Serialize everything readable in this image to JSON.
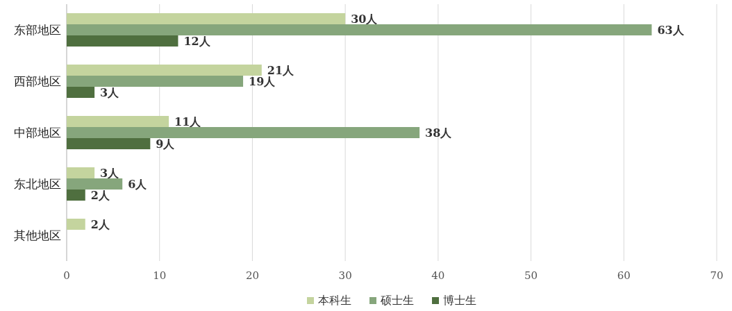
{
  "chart_data": {
    "type": "bar",
    "orientation": "horizontal",
    "categories": [
      "东部地区",
      "西部地区",
      "中部地区",
      "东北地区",
      "其他地区"
    ],
    "series": [
      {
        "name": "本科生",
        "color": "#c4d49e",
        "values": [
          30,
          21,
          11,
          3,
          2
        ],
        "value_labels": [
          "30人",
          "21人",
          "11人",
          "3人",
          "2人"
        ]
      },
      {
        "name": "硕士生",
        "color": "#86a67c",
        "values": [
          63,
          19,
          38,
          6,
          null
        ],
        "value_labels": [
          "63人",
          "19人",
          "38人",
          "6人",
          null
        ]
      },
      {
        "name": "博士生",
        "color": "#4f6f3f",
        "values": [
          12,
          3,
          9,
          2,
          null
        ],
        "value_labels": [
          "12人",
          "3人",
          "9人",
          "2人",
          null
        ]
      }
    ],
    "xlim": [
      0,
      70
    ],
    "xticks": [
      0,
      10,
      20,
      30,
      40,
      50,
      60,
      70
    ],
    "grid": "x",
    "legend": "bottom"
  }
}
